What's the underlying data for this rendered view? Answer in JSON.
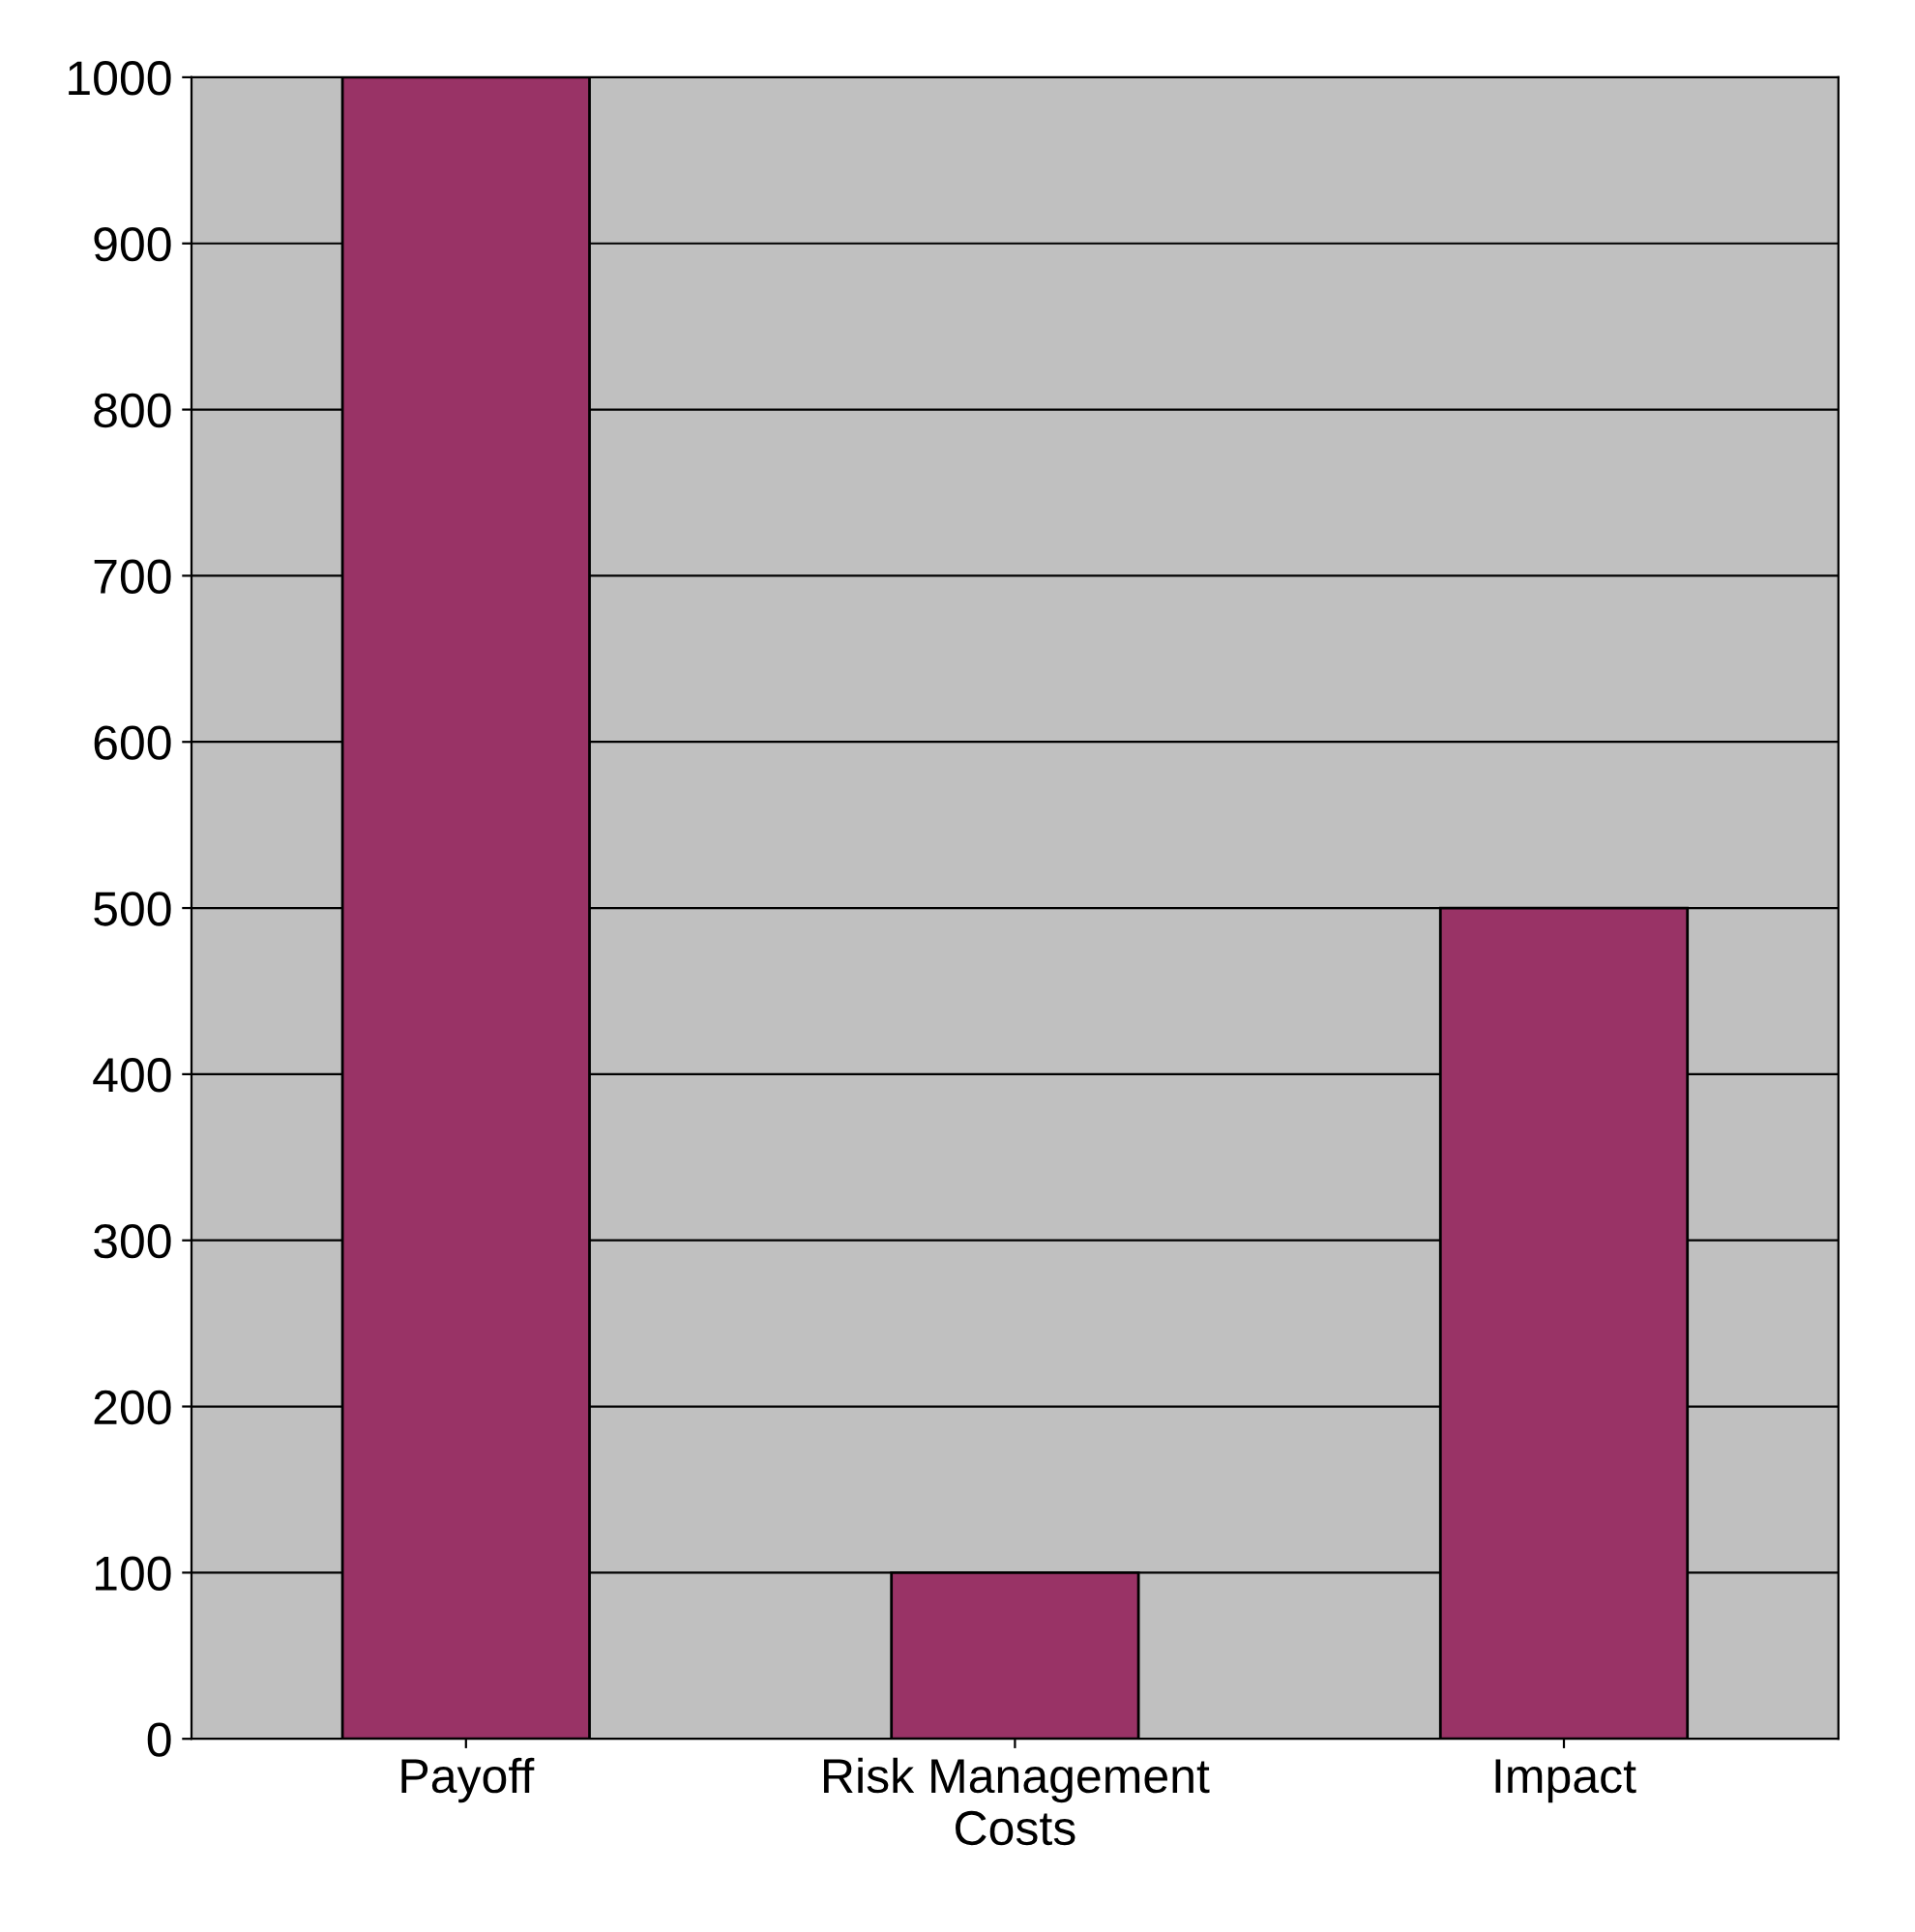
{
  "chart_data": {
    "type": "bar",
    "categories": [
      "Payoff",
      "Risk Management\nCosts",
      "Impact"
    ],
    "values": [
      1000,
      100,
      500
    ],
    "color": "#993366",
    "ylim": [
      0,
      1000
    ],
    "yticks": [
      0,
      100,
      200,
      300,
      400,
      500,
      600,
      700,
      800,
      900,
      1000
    ],
    "grid": "y"
  }
}
